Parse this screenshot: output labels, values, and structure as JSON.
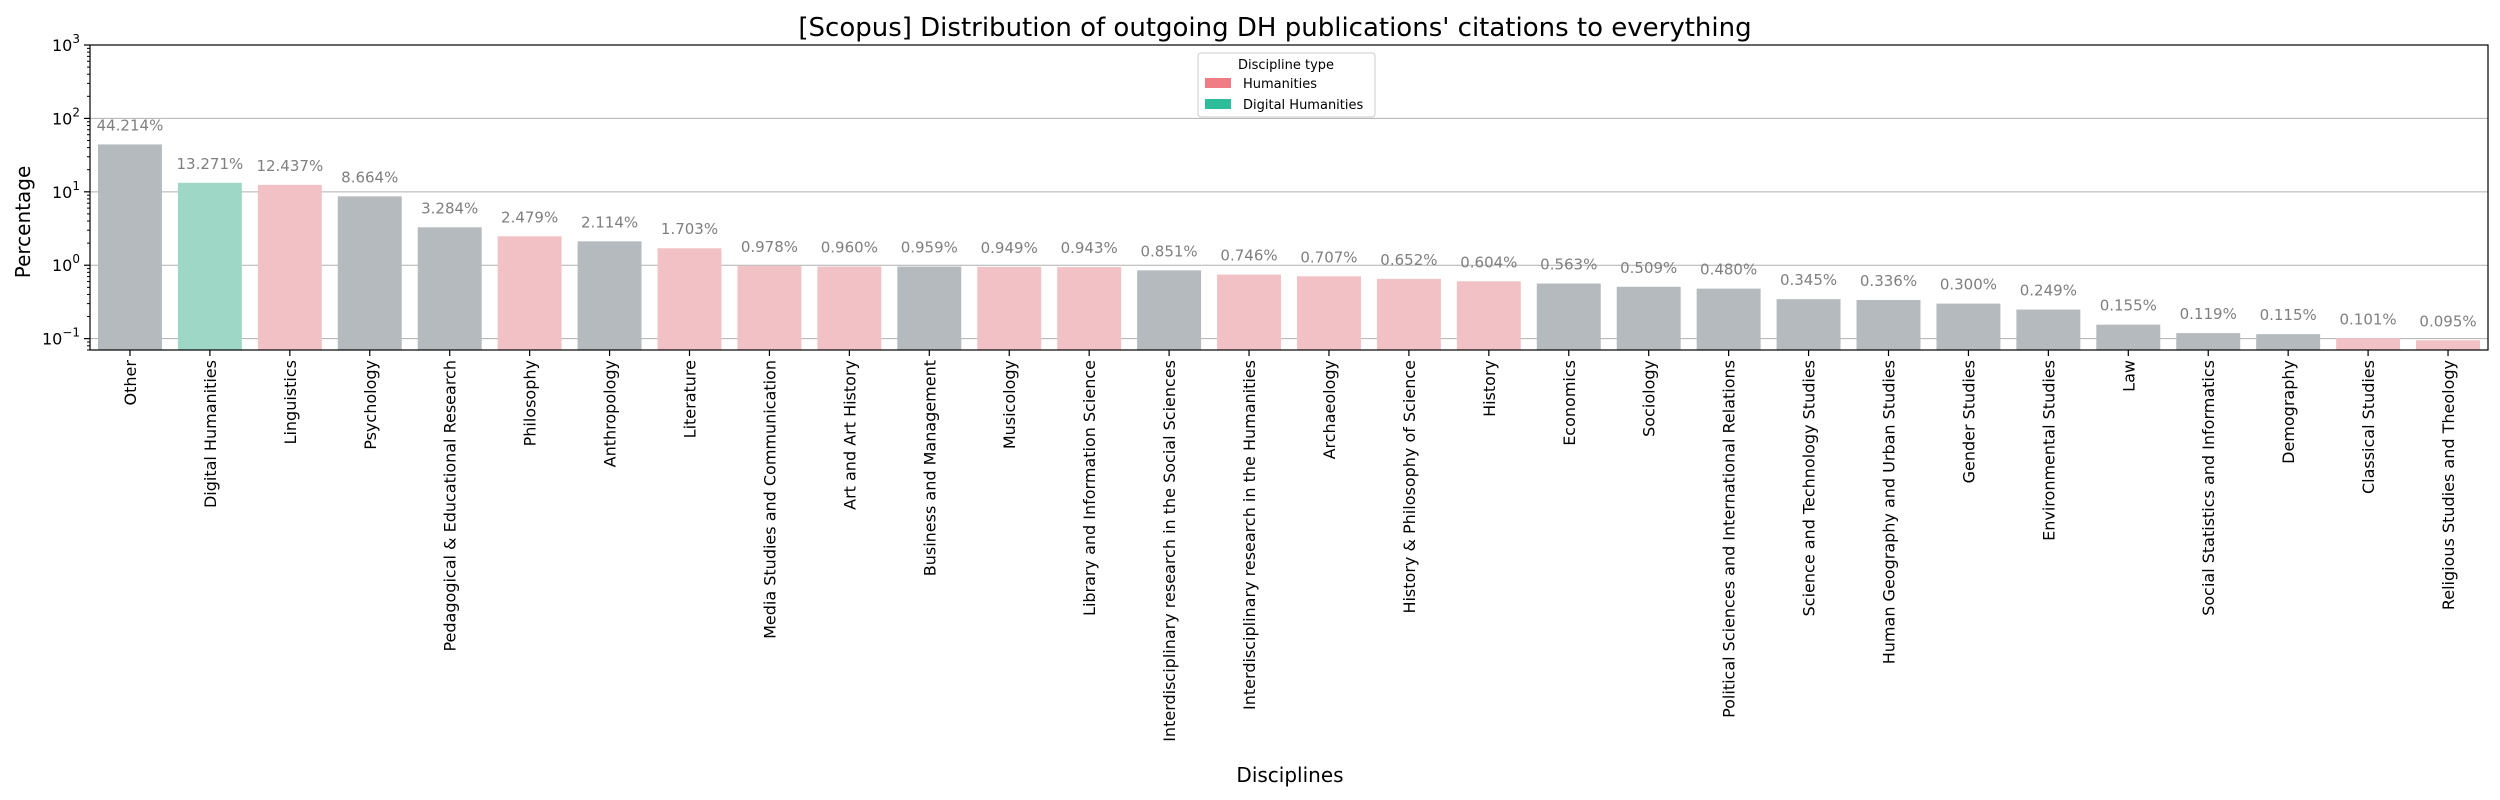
{
  "chart_data": {
    "type": "bar",
    "title": "[Scopus] Distribution of outgoing DH publications' citations to everything",
    "xlabel": "Disciplines",
    "ylabel": "Percentage",
    "yscale": "log",
    "ylim": [
      0.07,
      1000
    ],
    "yticks": [
      0.1,
      1,
      10,
      100,
      1000
    ],
    "ytick_labels": [
      {
        "base": "10",
        "exp": "−1"
      },
      {
        "base": "10",
        "exp": "0"
      },
      {
        "base": "10",
        "exp": "1"
      },
      {
        "base": "10",
        "exp": "2"
      },
      {
        "base": "10",
        "exp": "3"
      }
    ],
    "grid": "horizontal",
    "legend": {
      "title": "Discipline type",
      "placement": "top-center",
      "entries": [
        {
          "label": "Humanities",
          "color": "#f07c85"
        },
        {
          "label": "Digital Humanities",
          "color": "#2ebd9a"
        }
      ]
    },
    "colors": {
      "other": "#b4babe",
      "humanities": "#f2c1c6",
      "digital_humanities": "#9fd7c6",
      "data_label": "#7f7f7f",
      "grid": "#b0b0b0"
    },
    "categories": [
      {
        "name": "Other",
        "value": 44.214,
        "label": "44.214%",
        "group": "other"
      },
      {
        "name": "Digital Humanities",
        "value": 13.271,
        "label": "13.271%",
        "group": "digital_humanities"
      },
      {
        "name": "Linguistics",
        "value": 12.437,
        "label": "12.437%",
        "group": "humanities"
      },
      {
        "name": "Psychology",
        "value": 8.664,
        "label": "8.664%",
        "group": "other"
      },
      {
        "name": "Pedagogical & Educational Research",
        "value": 3.284,
        "label": "3.284%",
        "group": "other"
      },
      {
        "name": "Philosophy",
        "value": 2.479,
        "label": "2.479%",
        "group": "humanities"
      },
      {
        "name": "Anthropology",
        "value": 2.114,
        "label": "2.114%",
        "group": "other"
      },
      {
        "name": "Literature",
        "value": 1.703,
        "label": "1.703%",
        "group": "humanities"
      },
      {
        "name": "Media Studies and Communication",
        "value": 0.978,
        "label": "0.978%",
        "group": "humanities"
      },
      {
        "name": "Art and Art History",
        "value": 0.96,
        "label": "0.960%",
        "group": "humanities"
      },
      {
        "name": "Business and Management",
        "value": 0.959,
        "label": "0.959%",
        "group": "other"
      },
      {
        "name": "Musicology",
        "value": 0.949,
        "label": "0.949%",
        "group": "humanities"
      },
      {
        "name": "Library and Information Science",
        "value": 0.943,
        "label": "0.943%",
        "group": "humanities"
      },
      {
        "name": "Interdisciplinary research in the Social Sciences",
        "value": 0.851,
        "label": "0.851%",
        "group": "other"
      },
      {
        "name": "Interdisciplinary research in the Humanities",
        "value": 0.746,
        "label": "0.746%",
        "group": "humanities"
      },
      {
        "name": "Archaeology",
        "value": 0.707,
        "label": "0.707%",
        "group": "humanities"
      },
      {
        "name": "History & Philosophy of Science",
        "value": 0.652,
        "label": "0.652%",
        "group": "humanities"
      },
      {
        "name": "History",
        "value": 0.604,
        "label": "0.604%",
        "group": "humanities"
      },
      {
        "name": "Economics",
        "value": 0.563,
        "label": "0.563%",
        "group": "other"
      },
      {
        "name": "Sociology",
        "value": 0.509,
        "label": "0.509%",
        "group": "other"
      },
      {
        "name": "Political Sciences and International Relations",
        "value": 0.48,
        "label": "0.480%",
        "group": "other"
      },
      {
        "name": "Science and Technology Studies",
        "value": 0.345,
        "label": "0.345%",
        "group": "other"
      },
      {
        "name": "Human Geography and Urban Studies",
        "value": 0.336,
        "label": "0.336%",
        "group": "other"
      },
      {
        "name": "Gender Studies",
        "value": 0.3,
        "label": "0.300%",
        "group": "other"
      },
      {
        "name": "Environmental Studies",
        "value": 0.249,
        "label": "0.249%",
        "group": "other"
      },
      {
        "name": "Law",
        "value": 0.155,
        "label": "0.155%",
        "group": "other"
      },
      {
        "name": "Social Statistics and Informatics",
        "value": 0.119,
        "label": "0.119%",
        "group": "other"
      },
      {
        "name": "Demography",
        "value": 0.115,
        "label": "0.115%",
        "group": "other"
      },
      {
        "name": "Classical Studies",
        "value": 0.101,
        "label": "0.101%",
        "group": "humanities"
      },
      {
        "name": "Religious Studies and Theology",
        "value": 0.095,
        "label": "0.095%",
        "group": "humanities"
      }
    ]
  }
}
